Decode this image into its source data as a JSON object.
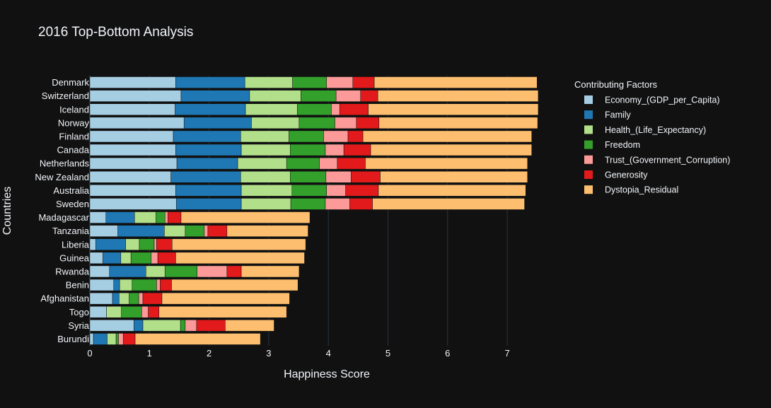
{
  "chart_data": {
    "type": "bar",
    "orientation": "horizontal",
    "barmode": "stack",
    "title": "2016 Top-Bottom Analysis",
    "xlabel": "Happiness Score",
    "ylabel": "Countries",
    "xlim": [
      0,
      7.9
    ],
    "xticks": [
      "0",
      "1",
      "2",
      "3",
      "4",
      "5",
      "6",
      "7"
    ],
    "grid": true,
    "legend_title": "Contributing Factors",
    "legend_position": "top-right",
    "categories": [
      "Denmark",
      "Switzerland",
      "Iceland",
      "Norway",
      "Finland",
      "Canada",
      "Netherlands",
      "New Zealand",
      "Australia",
      "Sweden",
      "Madagascar",
      "Tanzania",
      "Liberia",
      "Guinea",
      "Rwanda",
      "Benin",
      "Afghanistan",
      "Togo",
      "Syria",
      "Burundi"
    ],
    "series": [
      {
        "name": "Economy_(GDP_per_Capita)",
        "color": "#a6cee3",
        "values": [
          1.44,
          1.53,
          1.43,
          1.58,
          1.4,
          1.44,
          1.46,
          1.36,
          1.44,
          1.45,
          0.27,
          0.47,
          0.1,
          0.22,
          0.33,
          0.4,
          0.38,
          0.28,
          0.74,
          0.06
        ]
      },
      {
        "name": "Family",
        "color": "#1f78b4",
        "values": [
          1.16,
          1.15,
          1.18,
          1.13,
          1.13,
          1.1,
          1.02,
          1.17,
          1.1,
          1.09,
          0.48,
          0.78,
          0.5,
          0.3,
          0.61,
          0.1,
          0.11,
          0.0,
          0.15,
          0.23
        ]
      },
      {
        "name": "Health_(Life_Expectancy)",
        "color": "#b2df8a",
        "values": [
          0.8,
          0.86,
          0.87,
          0.8,
          0.81,
          0.82,
          0.82,
          0.83,
          0.85,
          0.83,
          0.36,
          0.35,
          0.23,
          0.17,
          0.32,
          0.21,
          0.17,
          0.25,
          0.63,
          0.15
        ]
      },
      {
        "name": "Freedom",
        "color": "#33a02c",
        "values": [
          0.57,
          0.59,
          0.57,
          0.6,
          0.58,
          0.59,
          0.55,
          0.6,
          0.58,
          0.58,
          0.15,
          0.32,
          0.25,
          0.34,
          0.54,
          0.41,
          0.16,
          0.34,
          0.08,
          0.04
        ]
      },
      {
        "name": "Trust_(Government_Corruption)",
        "color": "#fb9a99",
        "values": [
          0.44,
          0.41,
          0.14,
          0.36,
          0.41,
          0.31,
          0.3,
          0.42,
          0.32,
          0.41,
          0.05,
          0.06,
          0.04,
          0.11,
          0.5,
          0.06,
          0.07,
          0.11,
          0.19,
          0.08
        ]
      },
      {
        "name": "Generosity",
        "color": "#e31a1c",
        "values": [
          0.36,
          0.29,
          0.48,
          0.38,
          0.25,
          0.45,
          0.47,
          0.49,
          0.55,
          0.38,
          0.22,
          0.32,
          0.26,
          0.3,
          0.24,
          0.19,
          0.32,
          0.18,
          0.48,
          0.2
        ]
      },
      {
        "name": "Dystopia_Residual",
        "color": "#fdbf6f",
        "values": [
          2.73,
          2.69,
          2.85,
          2.66,
          2.83,
          2.7,
          2.72,
          2.47,
          2.47,
          2.55,
          2.16,
          1.36,
          2.24,
          2.16,
          0.97,
          2.12,
          2.14,
          2.14,
          0.82,
          2.1
        ]
      }
    ]
  }
}
